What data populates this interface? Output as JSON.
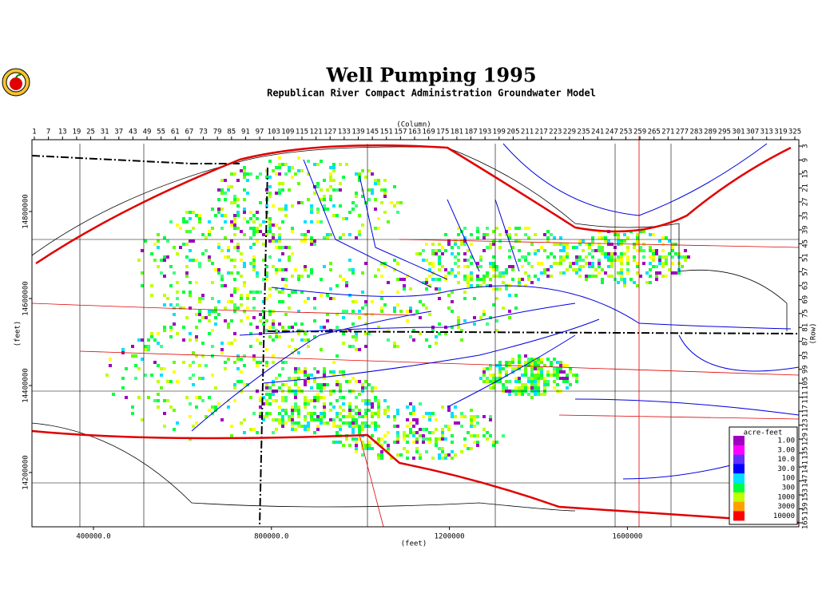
{
  "header": {
    "title": "Well Pumping 1995",
    "subtitle": "Republican River Compact Administration Groundwater Model"
  },
  "axes": {
    "column_label": "(Column)",
    "row_label": "(Row)",
    "x_label": "(feet)",
    "y_label": "(feet)",
    "column_ticks": [
      1,
      7,
      13,
      19,
      25,
      31,
      37,
      43,
      49,
      55,
      61,
      67,
      73,
      79,
      85,
      91,
      97,
      103,
      109,
      115,
      121,
      127,
      133,
      139,
      145,
      151,
      157,
      163,
      169,
      175,
      181,
      187,
      193,
      199,
      205,
      211,
      217,
      223,
      229,
      235,
      241,
      247,
      253,
      259,
      265,
      271,
      277,
      283,
      289,
      295,
      301,
      307,
      313,
      319,
      325
    ],
    "row_ticks": [
      3,
      9,
      15,
      21,
      27,
      33,
      39,
      45,
      51,
      57,
      63,
      69,
      75,
      81,
      87,
      93,
      99,
      105,
      111,
      117,
      123,
      129,
      135,
      141,
      147,
      153,
      159,
      165
    ],
    "x_ticks": [
      {
        "value": 400000,
        "label": "400000.0"
      },
      {
        "value": 800000,
        "label": "800000.0"
      },
      1200000,
      1600000
    ],
    "y_ticks": [
      14200000,
      14400000,
      14600000,
      14800000
    ]
  },
  "legend": {
    "title": "acre-feet",
    "entries": [
      {
        "label": "1.00",
        "color": "#a000c0"
      },
      {
        "label": "3.00",
        "color": "#ff00ff"
      },
      {
        "label": "10.0",
        "color": "#6030ff"
      },
      {
        "label": "30.0",
        "color": "#0000ff"
      },
      {
        "label": "100",
        "color": "#00e0ff"
      },
      {
        "label": "300",
        "color": "#00ff40"
      },
      {
        "label": "1000",
        "color": "#c0ff00"
      },
      {
        "label": "3000",
        "color": "#ffa000"
      },
      {
        "label": "10000",
        "color": "#ff0000"
      }
    ]
  }
}
